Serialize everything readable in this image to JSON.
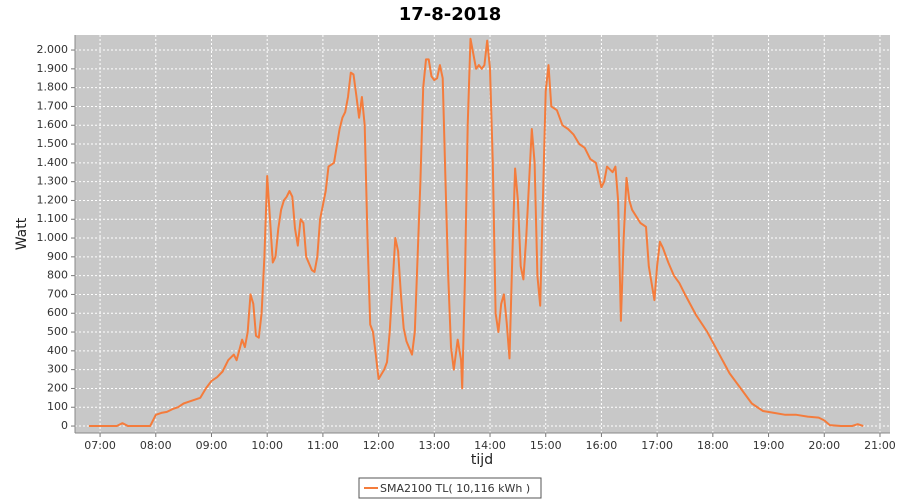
{
  "chart_data": {
    "type": "line",
    "title": "17-8-2018",
    "x_label": "tijd",
    "y_label": "Watt",
    "x": [
      6.8,
      7.3,
      7.4,
      7.5,
      7.9,
      8.0,
      8.1,
      8.2,
      8.3,
      8.4,
      8.5,
      8.6,
      8.7,
      8.8,
      8.9,
      9.0,
      9.1,
      9.2,
      9.3,
      9.4,
      9.45,
      9.55,
      9.6,
      9.65,
      9.7,
      9.75,
      9.8,
      9.85,
      9.9,
      9.95,
      10.0,
      10.05,
      10.1,
      10.15,
      10.2,
      10.25,
      10.3,
      10.35,
      10.4,
      10.45,
      10.5,
      10.55,
      10.6,
      10.65,
      10.7,
      10.8,
      10.85,
      10.9,
      10.95,
      11.05,
      11.1,
      11.15,
      11.2,
      11.3,
      11.35,
      11.4,
      11.45,
      11.5,
      11.55,
      11.6,
      11.65,
      11.7,
      11.75,
      11.8,
      11.85,
      11.9,
      11.95,
      12.0,
      12.1,
      12.15,
      12.2,
      12.3,
      12.35,
      12.4,
      12.45,
      12.5,
      12.6,
      12.65,
      12.75,
      12.8,
      12.85,
      12.9,
      12.95,
      13.0,
      13.05,
      13.1,
      13.15,
      13.2,
      13.25,
      13.3,
      13.35,
      13.42,
      13.48,
      13.5,
      13.55,
      13.6,
      13.65,
      13.7,
      13.75,
      13.8,
      13.85,
      13.9,
      13.95,
      14.0,
      14.05,
      14.1,
      14.15,
      14.2,
      14.25,
      14.3,
      14.35,
      14.4,
      14.45,
      14.5,
      14.55,
      14.6,
      14.65,
      14.75,
      14.8,
      14.85,
      14.9,
      14.95,
      15.0,
      15.05,
      15.1,
      15.2,
      15.3,
      15.4,
      15.5,
      15.6,
      15.7,
      15.8,
      15.9,
      16.0,
      16.05,
      16.1,
      16.2,
      16.25,
      16.3,
      16.35,
      16.4,
      16.45,
      16.5,
      16.55,
      16.7,
      16.8,
      16.85,
      16.95,
      17.0,
      17.05,
      17.1,
      17.2,
      17.3,
      17.4,
      17.5,
      17.7,
      17.9,
      18.1,
      18.3,
      18.5,
      18.7,
      18.9,
      19.1,
      19.3,
      19.5,
      19.7,
      19.9,
      20.0,
      20.1,
      20.3,
      20.5,
      20.6,
      20.7
    ],
    "series": [
      {
        "name": "SMA2100 TL( 10,116 kWh )",
        "color": "#f47c3c",
        "values": [
          0,
          0,
          15,
          0,
          0,
          60,
          70,
          75,
          90,
          100,
          120,
          130,
          140,
          150,
          200,
          240,
          260,
          290,
          350,
          380,
          350,
          460,
          420,
          500,
          700,
          650,
          480,
          470,
          600,
          900,
          1330,
          1100,
          870,
          900,
          1050,
          1150,
          1200,
          1220,
          1250,
          1220,
          1050,
          960,
          1100,
          1080,
          900,
          830,
          820,
          900,
          1100,
          1250,
          1380,
          1390,
          1400,
          1580,
          1640,
          1670,
          1750,
          1880,
          1870,
          1760,
          1640,
          1750,
          1600,
          1000,
          540,
          500,
          380,
          250,
          300,
          340,
          500,
          1000,
          930,
          700,
          520,
          450,
          380,
          500,
          1300,
          1800,
          1950,
          1950,
          1860,
          1840,
          1850,
          1920,
          1850,
          1300,
          800,
          420,
          300,
          460,
          350,
          200,
          800,
          1600,
          2060,
          1980,
          1900,
          1920,
          1900,
          1920,
          2050,
          1900,
          1400,
          600,
          500,
          650,
          700,
          550,
          360,
          900,
          1370,
          1200,
          850,
          780,
          1000,
          1580,
          1400,
          800,
          640,
          1200,
          1780,
          1920,
          1700,
          1680,
          1600,
          1580,
          1550,
          1500,
          1480,
          1420,
          1400,
          1270,
          1300,
          1380,
          1350,
          1380,
          1200,
          560,
          1000,
          1320,
          1200,
          1150,
          1080,
          1060,
          850,
          670,
          850,
          980,
          950,
          870,
          800,
          760,
          700,
          590,
          500,
          390,
          280,
          200,
          120,
          80,
          70,
          60,
          60,
          50,
          45,
          30,
          5,
          0,
          0,
          10,
          0
        ]
      }
    ],
    "xlim": [
      6.55,
      21.18
    ],
    "xticks": [
      {
        "value": 7,
        "label": "07:00"
      },
      {
        "value": 8,
        "label": "08:00"
      },
      {
        "value": 9,
        "label": "09:00"
      },
      {
        "value": 10,
        "label": "10:00"
      },
      {
        "value": 11,
        "label": "11:00"
      },
      {
        "value": 12,
        "label": "12:00"
      },
      {
        "value": 13,
        "label": "13:00"
      },
      {
        "value": 14,
        "label": "14:00"
      },
      {
        "value": 15,
        "label": "15:00"
      },
      {
        "value": 16,
        "label": "16:00"
      },
      {
        "value": 17,
        "label": "17:00"
      },
      {
        "value": 18,
        "label": "18:00"
      },
      {
        "value": 19,
        "label": "19:00"
      },
      {
        "value": 20,
        "label": "20:00"
      },
      {
        "value": 21,
        "label": "21:00"
      }
    ],
    "ylim": [
      -37,
      2080
    ],
    "yticks": [
      0,
      100,
      200,
      300,
      400,
      500,
      600,
      700,
      800,
      900,
      {
        "value": 1000,
        "label": "1.000"
      },
      {
        "value": 1100,
        "label": "1.100"
      },
      {
        "value": 1200,
        "label": "1.200"
      },
      {
        "value": 1300,
        "label": "1.300"
      },
      {
        "value": 1400,
        "label": "1.400"
      },
      {
        "value": 1500,
        "label": "1.500"
      },
      {
        "value": 1600,
        "label": "1.600"
      },
      {
        "value": 1700,
        "label": "1.700"
      },
      {
        "value": 1800,
        "label": "1.800"
      },
      {
        "value": 1900,
        "label": "1.900"
      },
      {
        "value": 2000,
        "label": "2.000"
      }
    ],
    "grid": true,
    "legend": "bottom"
  }
}
